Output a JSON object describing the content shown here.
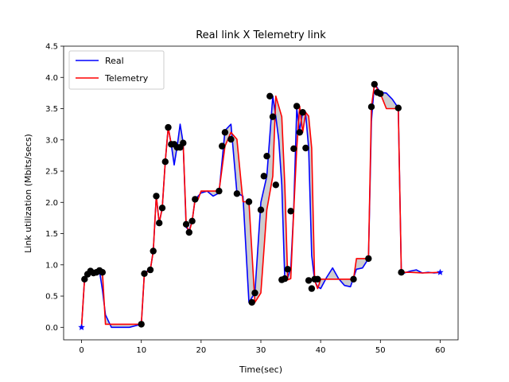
{
  "chart_data": {
    "type": "line",
    "title": "Real link X Telemetry link",
    "xlabel": "Time(sec)",
    "ylabel": "Link utilization (Mbits/secs)",
    "xlim": [
      -3,
      63
    ],
    "ylim": [
      -0.2,
      4.5
    ],
    "xticks": [
      0,
      10,
      20,
      30,
      40,
      50,
      60
    ],
    "yticks": [
      0.0,
      0.5,
      1.0,
      1.5,
      2.0,
      2.5,
      3.0,
      3.5,
      4.0,
      4.5
    ],
    "legend_position": "top-left",
    "series": [
      {
        "name": "Real",
        "color": "#0000ff",
        "x": [
          0,
          0.5,
          1,
          1.5,
          2,
          2.5,
          3,
          3.5,
          4,
          5,
          6,
          8,
          10,
          10.5,
          11,
          11.5,
          12,
          12.5,
          13,
          13.5,
          14,
          14.5,
          15,
          15.5,
          16,
          16.5,
          17,
          17.5,
          18,
          18.5,
          19,
          19.5,
          20,
          21,
          22,
          23,
          24,
          25,
          26,
          27,
          28,
          29,
          30,
          31,
          32,
          32.5,
          33,
          33.5,
          34,
          34.5,
          35,
          35.5,
          36,
          36.5,
          37,
          37.5,
          38,
          38.5,
          39,
          39.5,
          40,
          41,
          42,
          43,
          44,
          45,
          46,
          47,
          48,
          48.5,
          49,
          50,
          51,
          52,
          53,
          53.5,
          54,
          55,
          56,
          57,
          58,
          59,
          60
        ],
        "y": [
          0.0,
          0.77,
          0.85,
          0.9,
          0.87,
          0.88,
          0.9,
          0.6,
          0.2,
          0.0,
          0.0,
          0.0,
          0.05,
          0.86,
          0.9,
          0.92,
          1.22,
          2.1,
          1.67,
          1.91,
          2.65,
          3.2,
          2.93,
          2.6,
          2.9,
          3.25,
          2.95,
          1.6,
          1.55,
          1.7,
          2.05,
          2.1,
          2.15,
          2.18,
          2.1,
          2.15,
          3.15,
          3.25,
          2.15,
          2.1,
          0.4,
          0.55,
          2.0,
          2.42,
          3.7,
          3.37,
          3.0,
          2.28,
          0.76,
          0.8,
          0.94,
          1.88,
          3.5,
          3.15,
          3.45,
          3.4,
          2.87,
          1.15,
          0.75,
          0.65,
          0.62,
          0.8,
          0.95,
          0.78,
          0.67,
          0.65,
          0.93,
          0.95,
          1.1,
          3.3,
          3.9,
          3.76,
          3.75,
          3.65,
          3.51,
          0.88,
          0.87,
          0.9,
          0.92,
          0.87,
          0.88,
          0.87,
          0.88
        ]
      },
      {
        "name": "Telemetry",
        "color": "#ff0000",
        "x": [
          0,
          0.5,
          1,
          1.5,
          2,
          2.5,
          3,
          3.5,
          4,
          10,
          10.5,
          11.5,
          12,
          12.5,
          13,
          13.5,
          14,
          14.5,
          15,
          15.5,
          16,
          16.5,
          17,
          17.5,
          18,
          18.5,
          19,
          19.5,
          20,
          21,
          22,
          23,
          24,
          25,
          26,
          27,
          28,
          29,
          30,
          31,
          32,
          32.5,
          33.5,
          34,
          34.5,
          35,
          35.5,
          36,
          36.5,
          37,
          37.5,
          38,
          38.5,
          39,
          39.5,
          40,
          45.5,
          46,
          48,
          48.5,
          49,
          50,
          51,
          52,
          53,
          53.5,
          55,
          57,
          60
        ],
        "y": [
          0.0,
          0.77,
          0.85,
          0.9,
          0.87,
          0.88,
          0.9,
          0.88,
          0.05,
          0.05,
          0.86,
          0.92,
          1.22,
          2.1,
          1.67,
          1.91,
          2.65,
          3.2,
          2.93,
          2.93,
          2.88,
          2.88,
          2.95,
          1.65,
          1.52,
          1.7,
          2.05,
          2.05,
          2.18,
          2.18,
          2.18,
          2.18,
          2.9,
          3.12,
          3.01,
          2.01,
          2.01,
          0.4,
          0.55,
          1.88,
          2.42,
          3.7,
          3.37,
          2.28,
          0.76,
          0.78,
          1.86,
          2.86,
          3.54,
          3.12,
          3.44,
          3.38,
          2.87,
          0.75,
          0.62,
          0.77,
          0.77,
          1.1,
          1.1,
          3.53,
          3.89,
          3.74,
          3.5,
          3.5,
          3.5,
          0.88,
          0.88,
          0.87,
          0.88
        ]
      }
    ],
    "markers": {
      "color": "#000000",
      "x": [
        0.5,
        1,
        1.5,
        2,
        2.5,
        3,
        3.5,
        10,
        10.5,
        11.5,
        12,
        12.5,
        13,
        13.5,
        14,
        14.5,
        15,
        15.5,
        16,
        16.5,
        17,
        17.5,
        18,
        18.5,
        19,
        23,
        23.5,
        24,
        25,
        26,
        28,
        28.5,
        29,
        30,
        30.5,
        31,
        31.5,
        32,
        32.5,
        33.5,
        34,
        34.5,
        35,
        35.5,
        36,
        36.5,
        37,
        37.5,
        38,
        38.5,
        39,
        39.5,
        45.5,
        48,
        48.5,
        49,
        49.5,
        50,
        53,
        53.5
      ],
      "y": [
        0.77,
        0.85,
        0.9,
        0.87,
        0.88,
        0.91,
        0.88,
        0.05,
        0.86,
        0.92,
        1.22,
        2.1,
        1.67,
        1.91,
        2.65,
        3.2,
        2.93,
        2.93,
        2.88,
        2.88,
        2.95,
        1.65,
        1.52,
        1.7,
        2.05,
        2.18,
        2.9,
        3.12,
        3.01,
        2.14,
        2.01,
        0.4,
        0.55,
        1.88,
        2.42,
        2.74,
        3.7,
        3.37,
        2.28,
        0.76,
        0.78,
        0.93,
        1.86,
        2.86,
        3.54,
        3.12,
        3.44,
        2.87,
        0.75,
        0.62,
        0.77,
        0.77,
        0.77,
        1.1,
        3.53,
        3.89,
        3.76,
        3.74,
        3.51,
        0.88
      ]
    },
    "star_points": {
      "color": "#0000ff",
      "x": [
        0,
        60
      ],
      "y": [
        0.0,
        0.88
      ]
    },
    "fill_between_color": "#c8c8c8",
    "grid": false
  }
}
